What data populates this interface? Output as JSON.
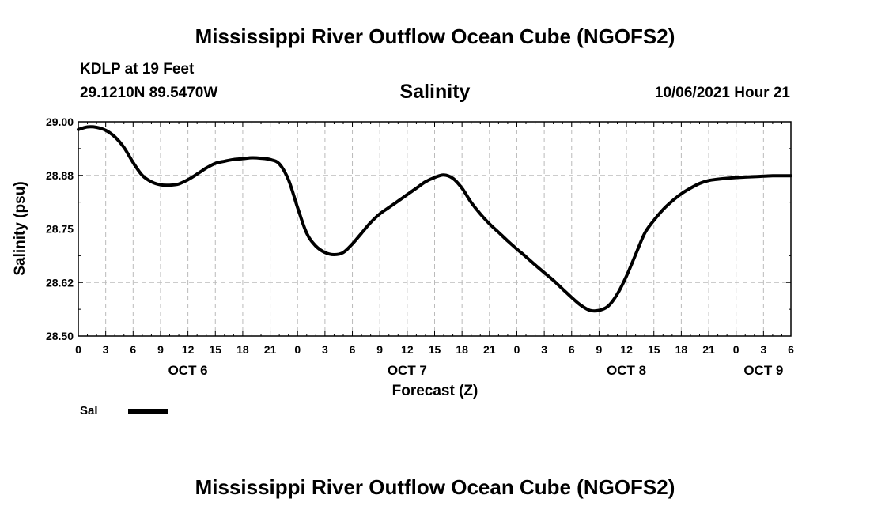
{
  "header": {
    "title": "Mississippi River Outflow Ocean Cube (NGOFS2)",
    "station": "KDLP at 19 Feet",
    "coords": "29.1210N  89.5470W",
    "variable": "Salinity",
    "datetime": "10/06/2021 Hour 21"
  },
  "footer": {
    "title": "Mississippi River Outflow Ocean Cube (NGOFS2)"
  },
  "chart_data": {
    "type": "line",
    "ylabel": "Salinity (psu)",
    "xlabel": "Forecast (Z)",
    "ylim": [
      28.5,
      29.0
    ],
    "xlim": [
      0,
      78
    ],
    "yticks": [
      "29.00",
      "28.88",
      "28.75",
      "28.62",
      "28.50"
    ],
    "ytick_values": [
      29.0,
      28.875,
      28.75,
      28.625,
      28.5
    ],
    "xtick_labels": [
      "0",
      "3",
      "6",
      "9",
      "12",
      "15",
      "18",
      "21",
      "0",
      "3",
      "6",
      "9",
      "12",
      "15",
      "18",
      "21",
      "0",
      "3",
      "6",
      "9",
      "12",
      "15",
      "18",
      "21",
      "0",
      "3",
      "6"
    ],
    "day_labels": [
      {
        "label": "OCT 6",
        "hour": 12
      },
      {
        "label": "OCT 7",
        "hour": 36
      },
      {
        "label": "OCT 8",
        "hour": 60
      },
      {
        "label": "OCT 9",
        "hour": 75
      }
    ],
    "grid": true,
    "legend": [
      {
        "name": "Sal",
        "position": "bottom-left"
      }
    ],
    "series": [
      {
        "name": "Sal",
        "x": [
          0,
          1,
          2,
          3,
          4,
          5,
          6,
          7,
          8,
          9,
          10,
          11,
          12,
          13,
          14,
          15,
          16,
          17,
          18,
          19,
          20,
          21,
          22,
          23,
          24,
          25,
          26,
          27,
          28,
          29,
          30,
          31,
          32,
          33,
          34,
          35,
          36,
          37,
          38,
          39,
          40,
          41,
          42,
          43,
          44,
          45,
          46,
          47,
          48,
          49,
          50,
          51,
          52,
          53,
          54,
          55,
          56,
          57,
          58,
          59,
          60,
          61,
          62,
          63,
          64,
          65,
          66,
          67,
          68,
          69,
          70,
          71,
          72,
          73,
          74,
          75,
          76,
          77,
          78
        ],
        "values": [
          28.982,
          28.988,
          28.987,
          28.98,
          28.965,
          28.94,
          28.905,
          28.875,
          28.86,
          28.853,
          28.852,
          28.855,
          28.865,
          28.878,
          28.892,
          28.903,
          28.908,
          28.912,
          28.914,
          28.916,
          28.915,
          28.912,
          28.902,
          28.865,
          28.8,
          28.74,
          28.71,
          28.695,
          28.69,
          28.695,
          28.715,
          28.74,
          28.765,
          28.785,
          28.8,
          28.815,
          28.83,
          28.845,
          28.86,
          28.87,
          28.876,
          28.868,
          28.845,
          28.812,
          28.785,
          28.762,
          28.742,
          28.722,
          28.703,
          28.685,
          28.666,
          28.648,
          28.63,
          28.61,
          28.59,
          28.572,
          28.56,
          28.56,
          28.57,
          28.598,
          28.64,
          28.69,
          28.74,
          28.77,
          28.795,
          28.815,
          28.832,
          28.845,
          28.856,
          28.863,
          28.866,
          28.868,
          28.87,
          28.871,
          28.872,
          28.873,
          28.874,
          28.874,
          28.874
        ],
        "color": "#000000"
      }
    ]
  }
}
